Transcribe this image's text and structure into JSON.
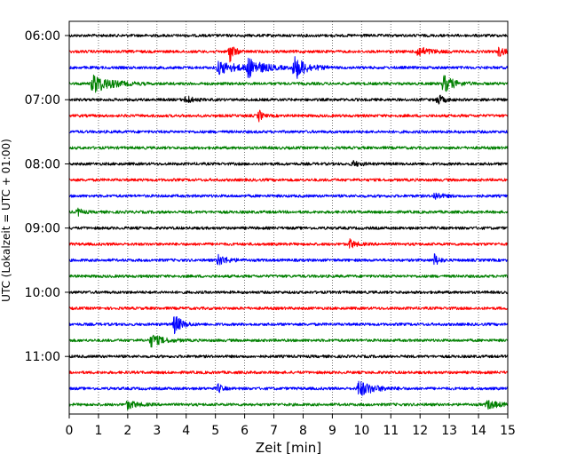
{
  "chart_data": {
    "type": "line",
    "title": "",
    "xlabel": "Zeit  [min]",
    "ylabel": "UTC (Lokalzeit = UTC + 01:00)",
    "xlim": [
      0,
      15
    ],
    "xticks": [
      "0",
      "1",
      "2",
      "3",
      "4",
      "5",
      "6",
      "7",
      "8",
      "9",
      "10",
      "11",
      "12",
      "13",
      "14",
      "15"
    ],
    "yticks": [
      {
        "label": "06:00",
        "trace": 0
      },
      {
        "label": "07:00",
        "trace": 4
      },
      {
        "label": "08:00",
        "trace": 8
      },
      {
        "label": "09:00",
        "trace": 12
      },
      {
        "label": "10:00",
        "trace": 16
      },
      {
        "label": "11:00",
        "trace": 20
      }
    ],
    "grid": "vertical dotted",
    "trace_colors": [
      "#000000",
      "#ff0000",
      "#0000ff",
      "#008000"
    ],
    "traces": [
      {
        "start": "06:00",
        "events": []
      },
      {
        "start": "06:15",
        "events": [
          {
            "t": 5.5,
            "amp": 12,
            "dur": 0.3
          },
          {
            "t": 11.9,
            "amp": 6,
            "dur": 0.8
          },
          {
            "t": 14.7,
            "amp": 5,
            "dur": 0.5
          }
        ]
      },
      {
        "start": "06:30",
        "events": [
          {
            "t": 5.1,
            "amp": 7,
            "dur": 1.4
          },
          {
            "t": 6.1,
            "amp": 10,
            "dur": 1.0
          },
          {
            "t": 7.7,
            "amp": 14,
            "dur": 0.8
          }
        ]
      },
      {
        "start": "06:45",
        "events": [
          {
            "t": 0.8,
            "amp": 11,
            "dur": 1.2
          },
          {
            "t": 12.8,
            "amp": 10,
            "dur": 0.7
          }
        ]
      },
      {
        "start": "07:00",
        "events": [
          {
            "t": 4.0,
            "amp": 5,
            "dur": 0.4
          },
          {
            "t": 12.6,
            "amp": 6,
            "dur": 0.4
          }
        ]
      },
      {
        "start": "07:15",
        "events": [
          {
            "t": 6.5,
            "amp": 7,
            "dur": 0.2
          }
        ]
      },
      {
        "start": "07:30",
        "events": []
      },
      {
        "start": "07:45",
        "events": []
      },
      {
        "start": "08:00",
        "events": [
          {
            "t": 9.7,
            "amp": 3,
            "dur": 0.5
          }
        ]
      },
      {
        "start": "08:15",
        "events": []
      },
      {
        "start": "08:30",
        "events": [
          {
            "t": 12.5,
            "amp": 4,
            "dur": 0.5
          }
        ]
      },
      {
        "start": "08:45",
        "events": [
          {
            "t": 0.3,
            "amp": 4,
            "dur": 0.3
          }
        ]
      },
      {
        "start": "09:00",
        "events": []
      },
      {
        "start": "09:15",
        "events": [
          {
            "t": 9.6,
            "amp": 5,
            "dur": 0.4
          }
        ]
      },
      {
        "start": "09:30",
        "events": [
          {
            "t": 5.1,
            "amp": 6,
            "dur": 0.6
          },
          {
            "t": 12.5,
            "amp": 7,
            "dur": 0.3
          }
        ]
      },
      {
        "start": "09:45",
        "events": []
      },
      {
        "start": "10:00",
        "events": []
      },
      {
        "start": "10:15",
        "events": []
      },
      {
        "start": "10:30",
        "events": [
          {
            "t": 3.6,
            "amp": 11,
            "dur": 0.5
          }
        ]
      },
      {
        "start": "10:45",
        "events": [
          {
            "t": 2.8,
            "amp": 7,
            "dur": 0.8
          }
        ]
      },
      {
        "start": "11:00",
        "events": []
      },
      {
        "start": "11:15",
        "events": []
      },
      {
        "start": "11:30",
        "events": [
          {
            "t": 5.1,
            "amp": 5,
            "dur": 0.3
          },
          {
            "t": 9.9,
            "amp": 9,
            "dur": 1.0
          }
        ]
      },
      {
        "start": "11:45",
        "events": [
          {
            "t": 2.0,
            "amp": 5,
            "dur": 0.6
          },
          {
            "t": 14.3,
            "amp": 5,
            "dur": 0.8
          }
        ]
      }
    ]
  }
}
